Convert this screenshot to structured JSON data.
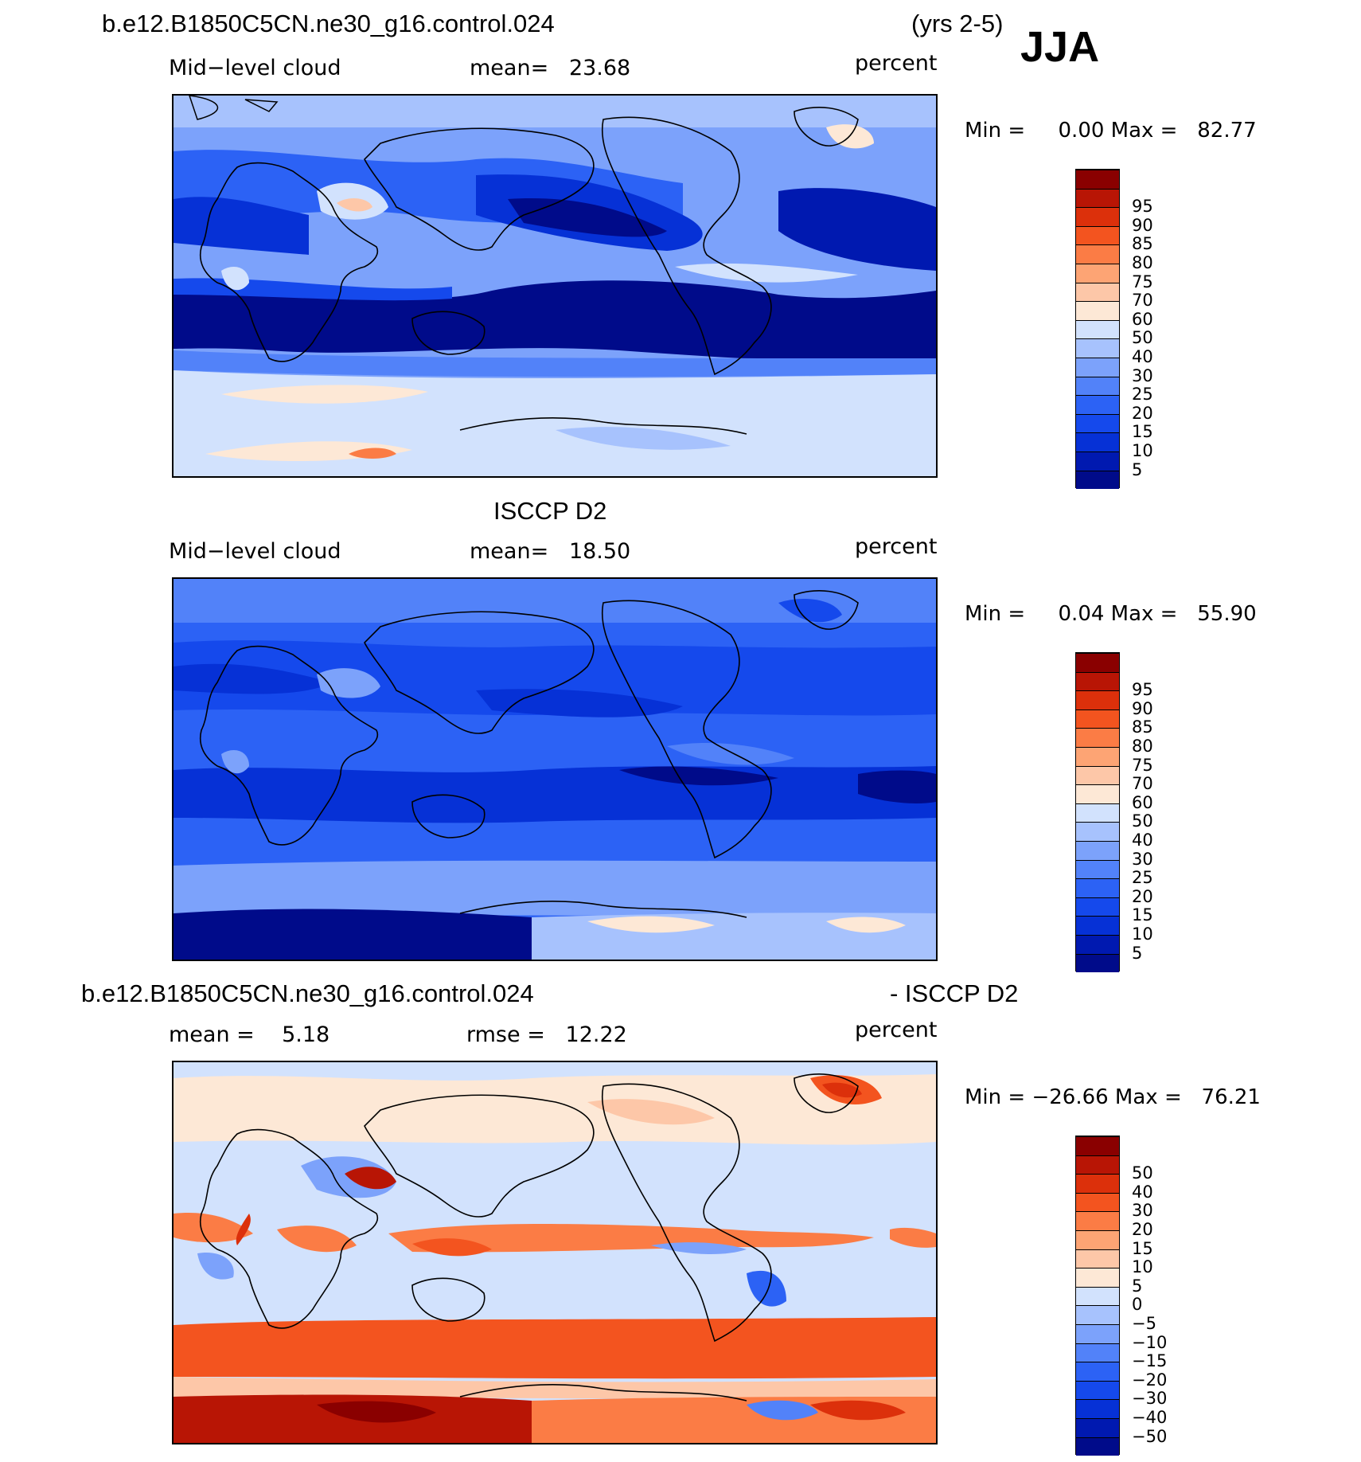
{
  "header": {
    "case_name": "b.e12.B1850C5CN.ne30_g16.control.024",
    "years": "(yrs 2-5)",
    "season": "JJA"
  },
  "panels": [
    {
      "id": "model",
      "top_title": "",
      "left_label": "Mid−level cloud",
      "center_label": "mean=   23.68",
      "right_label": "percent",
      "minmax": "Min =     0.00 Max =   82.77",
      "color_levels": [
        5,
        10,
        15,
        20,
        25,
        30,
        40,
        50,
        60,
        70,
        75,
        80,
        85,
        90,
        95
      ]
    },
    {
      "id": "obs",
      "top_title": "ISCCP D2",
      "left_label": "Mid−level cloud",
      "center_label": "mean=   18.50",
      "right_label": "percent",
      "minmax": "Min =     0.04 Max =   55.90",
      "color_levels": [
        5,
        10,
        15,
        20,
        25,
        30,
        40,
        50,
        60,
        70,
        75,
        80,
        85,
        90,
        95
      ]
    },
    {
      "id": "diff",
      "top_title_left": "b.e12.B1850C5CN.ne30_g16.control.024",
      "top_title_right": "- ISCCP D2",
      "left_label": "mean =    5.18",
      "center_label": "rmse =   12.22",
      "right_label": "percent",
      "minmax": "Min = −26.66 Max =   76.21",
      "color_levels": [
        "−50",
        "−40",
        "−30",
        "−20",
        "−15",
        "−10",
        "−5",
        "0",
        "5",
        "10",
        "15",
        "20",
        "30",
        "40",
        "50"
      ]
    }
  ],
  "palette": [
    "#000b8a",
    "#0019b0",
    "#0631d6",
    "#1549ec",
    "#2c62f5",
    "#5282f9",
    "#7ca2fb",
    "#a7c2fd",
    "#d2e2fd",
    "#fde8d6",
    "#fdc7a8",
    "#fda474",
    "#fb7c45",
    "#f3541f",
    "#dc300b",
    "#b81505",
    "#8a0000"
  ]
}
